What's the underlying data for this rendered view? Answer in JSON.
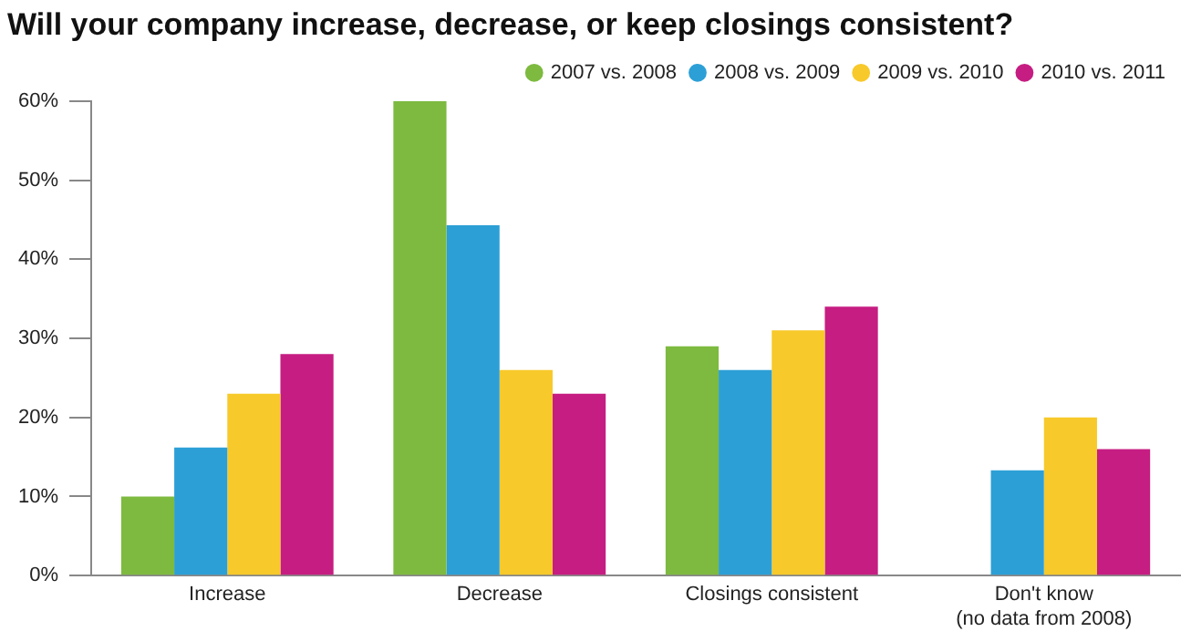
{
  "chart_data": {
    "type": "bar",
    "title": "Will your company increase, decrease, or keep closings consistent?",
    "categories": [
      "Increase",
      "Decrease",
      "Closings consistent",
      "Don't know\n(no data from 2008)"
    ],
    "series": [
      {
        "name": "2007 vs. 2008",
        "color": "#7dba3f",
        "values": [
          10,
          60,
          29,
          null
        ]
      },
      {
        "name": "2008 vs. 2009",
        "color": "#2c9fd6",
        "values": [
          16.2,
          44.3,
          26,
          13.3
        ]
      },
      {
        "name": "2009 vs. 2010",
        "color": "#f7c92a",
        "values": [
          23,
          26,
          31,
          20
        ]
      },
      {
        "name": "2010 vs. 2011",
        "color": "#c61d82",
        "values": [
          28,
          23,
          34,
          16
        ]
      }
    ],
    "ylim": [
      0,
      60
    ],
    "yticks": [
      {
        "value": 0,
        "label": "0%"
      },
      {
        "value": 10,
        "label": "10%"
      },
      {
        "value": 20,
        "label": "20%"
      },
      {
        "value": 30,
        "label": "30%"
      },
      {
        "value": 40,
        "label": "40%"
      },
      {
        "value": 50,
        "label": "50%"
      },
      {
        "value": 60,
        "label": "60%"
      }
    ],
    "grid": false,
    "legend": "top right"
  }
}
